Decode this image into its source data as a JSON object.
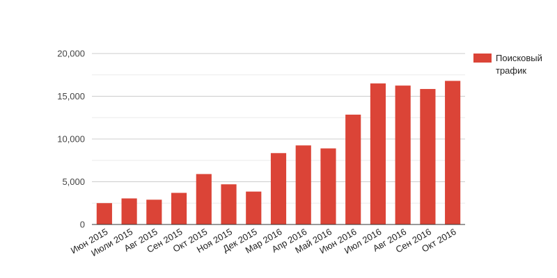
{
  "chart_data": {
    "type": "bar",
    "categories": [
      "Июн 2015",
      "Июли 2015",
      "Авг 2015",
      "Сен 2015",
      "Окт 2015",
      "Ноя 2015",
      "Дек 2015",
      "Мар 2016",
      "Апр 2016",
      "Май 2016",
      "Июн 2016",
      "Июл 2016",
      "Авг 2016",
      "Сен 2016",
      "Окт 2016"
    ],
    "series": [
      {
        "name": "Поисковый трафик",
        "legend_lines": [
          "Поисковый",
          "трафик"
        ],
        "color": "#db4437",
        "values": [
          2500,
          3050,
          2900,
          3700,
          5900,
          4700,
          3850,
          8350,
          9250,
          8900,
          12850,
          16500,
          16250,
          15850,
          16800
        ]
      }
    ],
    "title": "",
    "xlabel": "",
    "ylabel": "",
    "ylim": [
      0,
      20000
    ],
    "yticks": [
      0,
      5000,
      10000,
      15000,
      20000
    ],
    "ytick_labels": [
      "0",
      "5,000",
      "10,000",
      "15,000",
      "20,000"
    ],
    "grid": true,
    "legend_position": "right"
  }
}
